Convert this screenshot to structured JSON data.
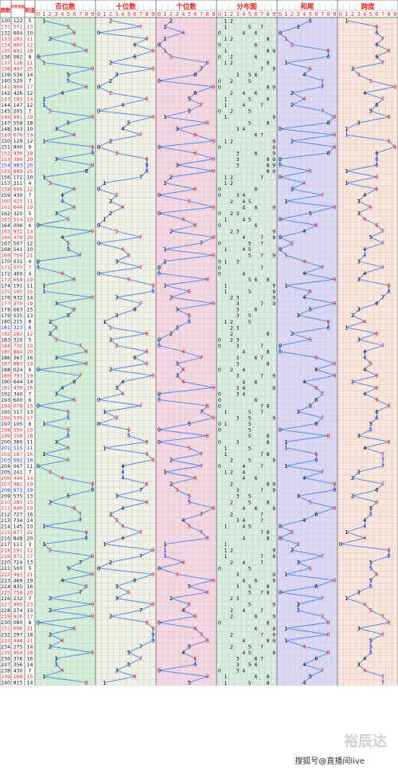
{
  "header": {
    "period_label": "期数",
    "prize_label": "开奖号码",
    "sum_label": "和值",
    "sections": [
      "百位数",
      "十位数",
      "个位数",
      "分布图",
      "和尾",
      "跨度"
    ],
    "digits": [
      "0",
      "1",
      "2",
      "3",
      "4",
      "5",
      "6",
      "7",
      "8",
      "9"
    ]
  },
  "colors": {
    "hundreds_bg": "#d3efd8",
    "tens_bg": "#f1f1e6",
    "units_bg": "#f6d6e2",
    "dist_bg": "#d8ece2",
    "sumtail_bg": "#dbd8f5",
    "span_bg": "#fbe6dc",
    "line": "#4a86e8",
    "red": "#e8251f",
    "black": "#111111",
    "blue": "#1a2fe0"
  },
  "watermark": "裕辰达",
  "footer": "搜狐号@直播间live",
  "chart_data": {
    "type": "table",
    "title": "",
    "columns": [
      "期数",
      "开奖号码",
      "和值",
      "百位数",
      "十位数",
      "个位数",
      "分布图",
      "和尾",
      "跨度"
    ],
    "rows": [
      [
        "130",
        "122",
        "5"
      ],
      [
        "131",
        "571",
        "13"
      ],
      [
        "132",
        "604",
        "10"
      ],
      [
        "133",
        "281",
        "11"
      ],
      [
        "134",
        "660",
        "12"
      ],
      [
        "135",
        "891",
        "18"
      ],
      [
        "136",
        "062",
        "8"
      ],
      [
        "137",
        "128",
        "11"
      ],
      [
        "138",
        "997",
        "25"
      ],
      [
        "139",
        "536",
        "14"
      ],
      [
        "140",
        "520",
        "7"
      ],
      [
        "141",
        "809",
        "17"
      ],
      [
        "142",
        "426",
        "12"
      ],
      [
        "143",
        "185",
        "14"
      ],
      [
        "144",
        "147",
        "12"
      ],
      [
        "145",
        "205",
        "7"
      ],
      [
        "146",
        "991",
        "19"
      ],
      [
        "147",
        "558",
        "18"
      ],
      [
        "148",
        "343",
        "10"
      ],
      [
        "149",
        "676",
        "19"
      ],
      [
        "150",
        "129",
        "12"
      ],
      [
        "151",
        "900",
        "9"
      ],
      [
        "152",
        "936",
        "18"
      ],
      [
        "153",
        "389",
        "20"
      ],
      [
        "154",
        "983",
        "20"
      ],
      [
        "155",
        "889",
        "25"
      ],
      [
        "156",
        "172",
        "10"
      ],
      [
        "157",
        "211",
        "4"
      ],
      [
        "158",
        "606",
        "12"
      ],
      [
        "159",
        "430",
        "7"
      ],
      [
        "160",
        "425",
        "11"
      ],
      [
        "161",
        "649",
        "19"
      ],
      [
        "162",
        "320",
        "5"
      ],
      [
        "163",
        "514",
        "10"
      ],
      [
        "164",
        "006",
        "6"
      ],
      [
        "165",
        "932",
        "14"
      ],
      [
        "166",
        "479",
        "20"
      ],
      [
        "167",
        "507",
        "12"
      ],
      [
        "168",
        "541",
        "10"
      ],
      [
        "169",
        "759",
        "21"
      ],
      [
        "170",
        "031",
        "4"
      ],
      [
        "171",
        "070",
        "7"
      ],
      [
        "172",
        "400",
        "4"
      ],
      [
        "173",
        "658",
        "19"
      ],
      [
        "174",
        "191",
        "11"
      ],
      [
        "175",
        "195",
        "15"
      ],
      [
        "176",
        "932",
        "14"
      ],
      [
        "177",
        "379",
        "19"
      ],
      [
        "178",
        "663",
        "15"
      ],
      [
        "179",
        "535",
        "13"
      ],
      [
        "180",
        "215",
        "8"
      ],
      [
        "181",
        "323",
        "8"
      ],
      [
        "182",
        "282",
        "12"
      ],
      [
        "183",
        "320",
        "5"
      ],
      [
        "184",
        "730",
        "10"
      ],
      [
        "185",
        "884",
        "20"
      ],
      [
        "186",
        "367",
        "16"
      ],
      [
        "187",
        "883",
        "19"
      ],
      [
        "188",
        "024",
        "6"
      ],
      [
        "189",
        "793",
        "19"
      ],
      [
        "190",
        "644",
        "14"
      ],
      [
        "191",
        "439",
        "16"
      ],
      [
        "192",
        "340",
        "7"
      ],
      [
        "193",
        "600",
        "6"
      ],
      [
        "194",
        "078",
        "15"
      ],
      [
        "195",
        "517",
        "13"
      ],
      [
        "196",
        "539",
        "17"
      ],
      [
        "197",
        "105",
        "6"
      ],
      [
        "198",
        "550",
        "10"
      ],
      [
        "199",
        "558",
        "18"
      ],
      [
        "200",
        "380",
        "11"
      ],
      [
        "201",
        "515",
        "11"
      ],
      [
        "202",
        "187",
        "16"
      ],
      [
        "203",
        "592",
        "16"
      ],
      [
        "204",
        "047",
        "11"
      ],
      [
        "205",
        "241",
        "7"
      ],
      [
        "206",
        "446",
        "14"
      ],
      [
        "207",
        "982",
        "19"
      ],
      [
        "208",
        "973",
        "19"
      ],
      [
        "209",
        "535",
        "13"
      ],
      [
        "210",
        "285",
        "15"
      ],
      [
        "211",
        "649",
        "19"
      ],
      [
        "212",
        "727",
        "16"
      ],
      [
        "213",
        "734",
        "14"
      ],
      [
        "214",
        "145",
        "10"
      ],
      [
        "215",
        "877",
        "22"
      ],
      [
        "216",
        "848",
        "20"
      ],
      [
        "217",
        "111",
        "3"
      ],
      [
        "218",
        "291",
        "12"
      ],
      [
        "219",
        "971",
        "17"
      ],
      [
        "220",
        "724",
        "13"
      ],
      [
        "221",
        "500",
        "5"
      ],
      [
        "222",
        "993",
        "21"
      ],
      [
        "223",
        "469",
        "19"
      ],
      [
        "224",
        "835",
        "16"
      ],
      [
        "225",
        "758",
        "20"
      ],
      [
        "226",
        "232",
        "7"
      ],
      [
        "227",
        "995",
        "23"
      ],
      [
        "228",
        "274",
        "13"
      ],
      [
        "229",
        "926",
        "17"
      ],
      [
        "230",
        "080",
        "8"
      ],
      [
        "231",
        "696",
        "21"
      ],
      [
        "232",
        "297",
        "18"
      ],
      [
        "233",
        "498",
        "21"
      ],
      [
        "234",
        "275",
        "14"
      ],
      [
        "235",
        "954",
        "18"
      ],
      [
        "236",
        "376",
        "16"
      ],
      [
        "237",
        "356",
        "14"
      ],
      [
        "238",
        "430",
        "7"
      ],
      [
        "239",
        "168",
        "15"
      ],
      [
        "240",
        "815",
        "14"
      ]
    ]
  }
}
